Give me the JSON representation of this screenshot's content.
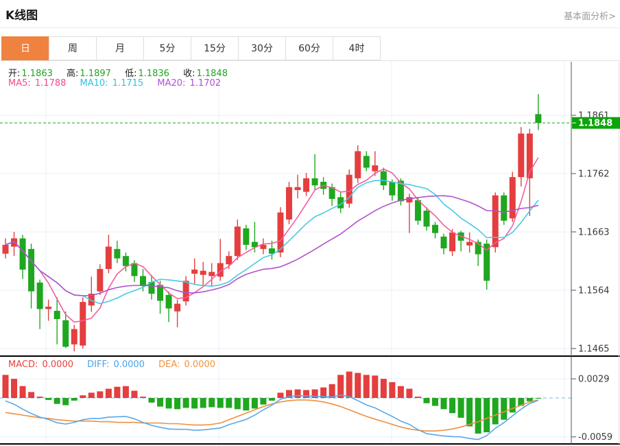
{
  "header": {
    "title": "K线图",
    "link": "基本面分析>"
  },
  "tabs": {
    "items": [
      "日",
      "周",
      "月",
      "5分",
      "15分",
      "30分",
      "60分",
      "4时"
    ],
    "selected_index": 0,
    "selected_bg": "#f0823f"
  },
  "ohlc_legend": {
    "open_label": "开:",
    "open": "1.1863",
    "high_label": "高:",
    "high": "1.1897",
    "low_label": "低:",
    "low": "1.1836",
    "close_label": "收:",
    "close": "1.1848",
    "value_color": "#1fa51f"
  },
  "ma_legend": {
    "ma5_label": "MA5:",
    "ma5": "1.1788",
    "ma5_color": "#f4478f",
    "ma10_label": "MA10:",
    "ma10": "1.1715",
    "ma10_color": "#2ec0e6",
    "ma20_label": "MA20:",
    "ma20": "1.1702",
    "ma20_color": "#ae4ed4"
  },
  "macd_legend": {
    "macd_label": "MACD:",
    "macd": "0.0000",
    "macd_color": "#e8423c",
    "diff_label": "DIFF:",
    "diff": "0.0000",
    "diff_color": "#4aa3e8",
    "dea_label": "DEA:",
    "dea": "0.0000",
    "dea_color": "#f29342"
  },
  "price_axis": {
    "labels": [
      1.1861,
      1.1762,
      1.1663,
      1.1564,
      1.1465
    ],
    "last_price": 1.1848,
    "last_price_color": "#0ca40c",
    "text_color": "#3a3a3a"
  },
  "macd_axis": {
    "labels": [
      0.0029,
      -0.0059
    ]
  },
  "chart_data": {
    "type": "candlestick",
    "subchart": "macd-histogram",
    "title": "K线图 (日)",
    "ylim_main": [
      1.1465,
      1.1897
    ],
    "ylim_macd": [
      -0.0059,
      0.0029
    ],
    "grid": true,
    "grid_color": "#e8eff7",
    "up_color": "#e43e3e",
    "down_color": "#1fa71f",
    "ma_periods": [
      5,
      10,
      20
    ],
    "ma_colors": [
      "#f45c9e",
      "#45cbe2",
      "#b152cc"
    ],
    "diff_color": "#58a8e8",
    "dea_color": "#f08f3e",
    "zero_line_color": "#bcd9ea",
    "current_price_line_color": "#16a316",
    "candles": [
      [
        1.1626,
        1.1652,
        1.1618,
        1.1641
      ],
      [
        1.1638,
        1.1663,
        1.1622,
        1.1652
      ],
      [
        1.1652,
        1.1658,
        1.1583,
        1.1599
      ],
      [
        1.1634,
        1.1643,
        1.1533,
        1.1562
      ],
      [
        1.1577,
        1.1582,
        1.1498,
        1.1532
      ],
      [
        1.1532,
        1.1548,
        1.1512,
        1.1536
      ],
      [
        1.1529,
        1.1552,
        1.1472,
        1.1515
      ],
      [
        1.1513,
        1.1528,
        1.1466,
        1.1468
      ],
      [
        1.1472,
        1.1505,
        1.146,
        1.1498
      ],
      [
        1.147,
        1.1552,
        1.1465,
        1.1544
      ],
      [
        1.1538,
        1.1587,
        1.1527,
        1.1558
      ],
      [
        1.1562,
        1.1608,
        1.1556,
        1.16
      ],
      [
        1.16,
        1.1658,
        1.1593,
        1.1638
      ],
      [
        1.1634,
        1.1648,
        1.161,
        1.1618
      ],
      [
        1.1622,
        1.1628,
        1.1596,
        1.1605
      ],
      [
        1.161,
        1.1615,
        1.1578,
        1.1588
      ],
      [
        1.1588,
        1.16,
        1.1562,
        1.1571
      ],
      [
        1.1578,
        1.159,
        1.1548,
        1.1558
      ],
      [
        1.1573,
        1.158,
        1.1524,
        1.1546
      ],
      [
        1.1556,
        1.1562,
        1.151,
        1.1533
      ],
      [
        1.1528,
        1.1548,
        1.1501,
        1.1541
      ],
      [
        1.1545,
        1.1588,
        1.1538,
        1.158
      ],
      [
        1.1592,
        1.1618,
        1.1575,
        1.1599
      ],
      [
        1.159,
        1.1612,
        1.1572,
        1.1597
      ],
      [
        1.1588,
        1.161,
        1.157,
        1.1595
      ],
      [
        1.1587,
        1.1651,
        1.158,
        1.161
      ],
      [
        1.1608,
        1.163,
        1.16,
        1.1622
      ],
      [
        1.1622,
        1.1684,
        1.1615,
        1.1672
      ],
      [
        1.1669,
        1.1675,
        1.1632,
        1.1641
      ],
      [
        1.1646,
        1.168,
        1.1628,
        1.1637
      ],
      [
        1.1634,
        1.1652,
        1.1625,
        1.1641
      ],
      [
        1.1635,
        1.1648,
        1.1616,
        1.1626
      ],
      [
        1.1628,
        1.1705,
        1.162,
        1.1696
      ],
      [
        1.1684,
        1.1748,
        1.1676,
        1.1739
      ],
      [
        1.1734,
        1.176,
        1.172,
        1.1739
      ],
      [
        1.1731,
        1.1763,
        1.1724,
        1.1754
      ],
      [
        1.1754,
        1.1795,
        1.1734,
        1.1742
      ],
      [
        1.1748,
        1.1756,
        1.1726,
        1.1736
      ],
      [
        1.1739,
        1.1745,
        1.1707,
        1.1719
      ],
      [
        1.1722,
        1.173,
        1.1695,
        1.1703
      ],
      [
        1.1711,
        1.1769,
        1.1704,
        1.176
      ],
      [
        1.1754,
        1.181,
        1.1746,
        1.18
      ],
      [
        1.1792,
        1.18,
        1.1766,
        1.1772
      ],
      [
        1.1766,
        1.18,
        1.1758,
        1.1776
      ],
      [
        1.1766,
        1.1772,
        1.1734,
        1.1742
      ],
      [
        1.1748,
        1.1752,
        1.1716,
        1.1725
      ],
      [
        1.175,
        1.1754,
        1.1708,
        1.1715
      ],
      [
        1.1713,
        1.1728,
        1.1661,
        1.1722
      ],
      [
        1.1717,
        1.1722,
        1.1675,
        1.1682
      ],
      [
        1.1699,
        1.1705,
        1.1665,
        1.1672
      ],
      [
        1.1675,
        1.168,
        1.1652,
        1.1661
      ],
      [
        1.1655,
        1.166,
        1.1625,
        1.1635
      ],
      [
        1.163,
        1.1668,
        1.1622,
        1.1662
      ],
      [
        1.1662,
        1.1665,
        1.163,
        1.1648
      ],
      [
        1.164,
        1.1662,
        1.1628,
        1.1646
      ],
      [
        1.1646,
        1.165,
        1.1605,
        1.1625
      ],
      [
        1.1643,
        1.165,
        1.1565,
        1.158
      ],
      [
        1.1637,
        1.173,
        1.1628,
        1.1725
      ],
      [
        1.1725,
        1.173,
        1.1675,
        1.1682
      ],
      [
        1.1686,
        1.1765,
        1.168,
        1.1756
      ],
      [
        1.1756,
        1.1841,
        1.174,
        1.183
      ],
      [
        1.1754,
        1.1838,
        1.169,
        1.183
      ],
      [
        1.1863,
        1.1897,
        1.1836,
        1.1848
      ]
    ],
    "macd_hist": [
      0.0035,
      0.0029,
      0.0018,
      0.0009,
      0.0002,
      -0.0003,
      -0.0009,
      -0.0011,
      -0.0004,
      0.0004,
      0.0008,
      0.001,
      0.0014,
      0.0017,
      0.0018,
      0.0011,
      0.0002,
      -0.0007,
      -0.0013,
      -0.0016,
      -0.0017,
      -0.0015,
      -0.0016,
      -0.0015,
      -0.0014,
      -0.0015,
      -0.0015,
      -0.0017,
      -0.0019,
      -0.0016,
      -0.001,
      -0.0004,
      0.0008,
      0.0012,
      0.0013,
      0.0012,
      0.0013,
      0.0016,
      0.0021,
      0.0035,
      0.004,
      0.0038,
      0.0035,
      0.0034,
      0.0029,
      0.0024,
      0.0018,
      0.0014,
      0.0002,
      -0.0008,
      -0.0012,
      -0.0017,
      -0.0023,
      -0.003,
      -0.0043,
      -0.0054,
      -0.0052,
      -0.004,
      -0.0033,
      -0.0022,
      -0.0012,
      -0.0005,
      -0.0001
    ],
    "macd_dea": [
      -0.0022,
      -0.0024,
      -0.0026,
      -0.0028,
      -0.003,
      -0.0031,
      -0.0033,
      -0.0034,
      -0.0035,
      -0.0035,
      -0.0035,
      -0.0036,
      -0.0036,
      -0.0037,
      -0.0037,
      -0.0037,
      -0.0038,
      -0.0038,
      -0.0038,
      -0.0039,
      -0.0039,
      -0.004,
      -0.0041,
      -0.0041,
      -0.004,
      -0.0038,
      -0.0033,
      -0.0028,
      -0.0023,
      -0.0018,
      -0.0013,
      -0.0009,
      -0.0006,
      -0.0004,
      -0.0003,
      -0.0003,
      -0.0004,
      -0.0006,
      -0.0009,
      -0.0013,
      -0.0018,
      -0.0023,
      -0.0028,
      -0.0032,
      -0.0036,
      -0.004,
      -0.0044,
      -0.0047,
      -0.0049,
      -0.005,
      -0.005,
      -0.0049,
      -0.0047,
      -0.0044,
      -0.004,
      -0.0036,
      -0.0031,
      -0.0026,
      -0.0021,
      -0.0016,
      -0.0011,
      -0.0006,
      -0.0003
    ]
  }
}
